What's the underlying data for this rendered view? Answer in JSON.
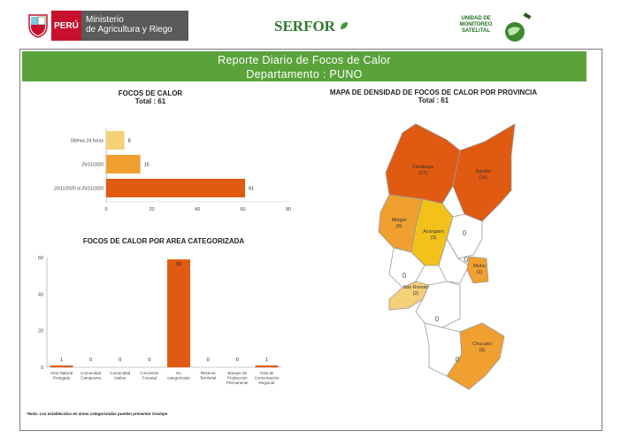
{
  "header": {
    "peru_label": "PERÚ",
    "ministry_line1": "Ministerio",
    "ministry_line2": "de Agricultura y Riego",
    "serfor": "SERFOR",
    "unidad_line1": "UNIDAD DE",
    "unidad_line2": "MONITOREO",
    "unidad_line3": "SATELITAL"
  },
  "banner": {
    "line1": "Reporte Diario de Focos de Calor",
    "line2": "Departamento : PUNO"
  },
  "colors": {
    "green": "#5aa23a",
    "dark_orange": "#e05a12",
    "mid_orange": "#f0a030",
    "light": "#f4d079",
    "yellow": "#f2c21b"
  },
  "chart_data": [
    {
      "type": "bar",
      "orientation": "horizontal",
      "title": "FOCOS DE CALOR",
      "subtitle": "Total : 61",
      "categories": [
        "Últimas 24 horas",
        "25/11/2020",
        "23/11/2020 al 25/11/2020"
      ],
      "values": [
        8,
        15,
        61
      ],
      "xlim": [
        0,
        80
      ],
      "xticks": [
        0,
        20,
        40,
        60,
        80
      ]
    },
    {
      "type": "bar",
      "title": "FOCOS DE CALOR POR AREA CATEGORIZADA",
      "categories": [
        "Área Natural Protegida",
        "Comunidad Campesina",
        "Comunidad Nativa",
        "Concesión Forestal",
        "No categorizado",
        "Reserva Territorial",
        "Bosque de Producción Permanente",
        "Área de Conservación Regional"
      ],
      "values": [
        1,
        0,
        0,
        0,
        59,
        0,
        0,
        1
      ],
      "ylim": [
        0,
        60
      ],
      "yticks": [
        0,
        20,
        40,
        60
      ]
    }
  ],
  "map": {
    "title": "MAPA DE DENSIDAD DE FOCOS DE CALOR POR PROVINCIA",
    "subtitle": "Total : 61",
    "provinces": [
      {
        "name": "Carabaya",
        "count": "(27)"
      },
      {
        "name": "Sandia",
        "count": "(14)"
      },
      {
        "name": "Melgar",
        "count": "(6)"
      },
      {
        "name": "Azángaro",
        "count": "(3)"
      },
      {
        "name": "Moho",
        "count": "(1)"
      },
      {
        "name": "San Román",
        "count": "(2)"
      },
      {
        "name": "Chucuito",
        "count": "(6)"
      }
    ],
    "zero_label": "0"
  },
  "note": "*Nota: Los establecidos en áreas categorizadas pueden presentar traslape"
}
